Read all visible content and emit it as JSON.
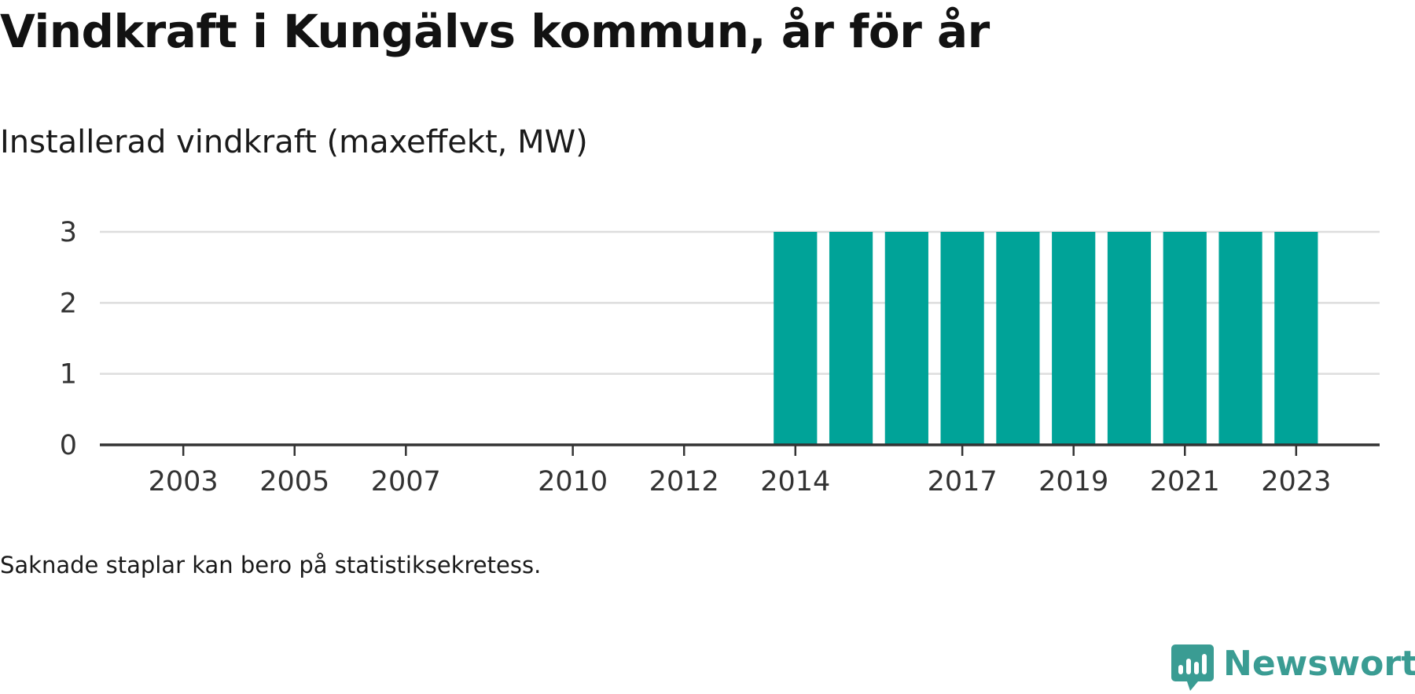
{
  "title": "Vindkraft i Kungälvs kommun, år för år",
  "footnote": "Saknade staplar kan bero på statistiksekretess.",
  "logo": {
    "text": "Newsworthy",
    "icon": "newsworthy-chart-bubble-icon",
    "color": "#3a9c93"
  },
  "chart_data": {
    "type": "bar",
    "title": "Vindkraft i Kungälvs kommun, år för år",
    "subtitle": "Installerad vindkraft (maxeffekt, MW)",
    "xlabel": "",
    "ylabel": "",
    "x": [
      2002,
      2003,
      2004,
      2005,
      2006,
      2007,
      2008,
      2009,
      2010,
      2011,
      2012,
      2013,
      2014,
      2015,
      2016,
      2017,
      2018,
      2019,
      2020,
      2021,
      2022,
      2023
    ],
    "values": [
      null,
      null,
      null,
      null,
      null,
      null,
      null,
      null,
      null,
      null,
      null,
      null,
      3,
      3,
      3,
      3,
      3,
      3,
      3,
      3,
      3,
      3
    ],
    "x_ticks": [
      2003,
      2005,
      2007,
      2010,
      2012,
      2014,
      2017,
      2019,
      2021,
      2023
    ],
    "y_ticks": [
      0,
      1,
      2,
      3
    ],
    "ylim": [
      0,
      3
    ],
    "xlim": [
      2001.5,
      2024.5
    ],
    "grid": true,
    "legend": "none",
    "bar_color": "#00a398",
    "grid_color": "#dddddd",
    "axis_color": "#333333"
  }
}
